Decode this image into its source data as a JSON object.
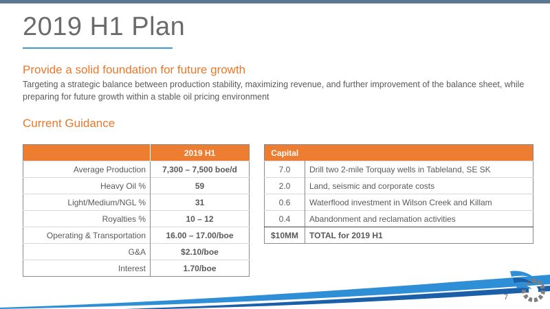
{
  "slide": {
    "title": "2019 H1 Plan",
    "subheading": "Provide a solid foundation for future growth",
    "body": "Targeting a strategic balance between production stability, maximizing revenue, and further improvement of the balance sheet, while preparing for future growth within a stable oil pricing environment",
    "section_heading": "Current Guidance",
    "page_number": "7"
  },
  "guidance": {
    "header_blank": "",
    "header_value": "2019 H1",
    "rows": [
      {
        "label": "Average Production",
        "value": "7,300 – 7,500 boe/d"
      },
      {
        "label": "Heavy Oil %",
        "value": "59"
      },
      {
        "label": "Light/Medium/NGL %",
        "value": "31"
      },
      {
        "label": "Royalties %",
        "value": "10 – 12"
      },
      {
        "label": "Operating & Transportation",
        "value": "16.00 – 17.00/boe"
      },
      {
        "label": "G&A",
        "value": "$2.10/boe"
      },
      {
        "label": "Interest",
        "value": "1.70/boe"
      }
    ]
  },
  "capital": {
    "header": "Capital",
    "rows": [
      {
        "amount": "7.0",
        "description": "Drill two 2-mile Torquay wells in Tableland, SE SK"
      },
      {
        "amount": "2.0",
        "description": "Land, seismic and corporate costs"
      },
      {
        "amount": "0.6",
        "description": "Waterflood investment in Wilson Creek and Killam"
      },
      {
        "amount": "0.4",
        "description": "Abandonment and reclamation activities"
      }
    ],
    "total": {
      "amount": "$10MM",
      "description": "TOTAL for 2019 H1"
    }
  },
  "colors": {
    "accent_orange": "#ed7d31",
    "heading_orange": "#e8782a",
    "title_gray": "#6b6b6b",
    "underline_blue": "#3e9ad4",
    "top_bar": "#5b7690"
  },
  "icons": {
    "logo": "company-logo-gear-wings"
  }
}
